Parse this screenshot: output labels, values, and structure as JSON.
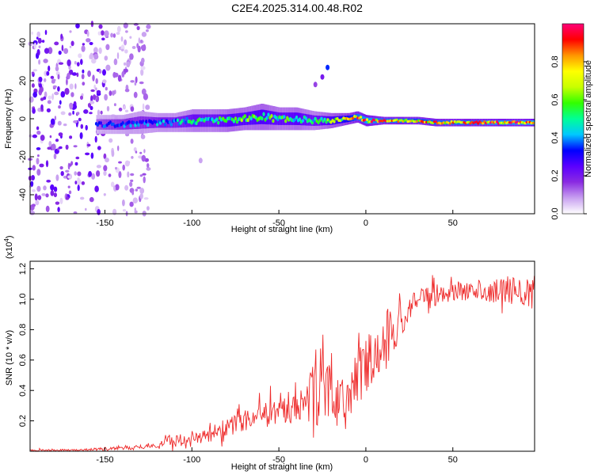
{
  "title": "C2E4.2025.314.00.48.R02",
  "chart_data": [
    {
      "type": "heatmap",
      "name": "spectrogram",
      "xlabel": "Height of straight line (km)",
      "ylabel": "Frequency (Hz)",
      "xlim": [
        -193,
        97
      ],
      "ylim": [
        -50,
        50
      ],
      "xticks": [
        -150,
        -100,
        -50,
        0,
        50
      ],
      "yticks": [
        -40,
        -20,
        0,
        20,
        40
      ],
      "colorbar": {
        "label": "Normalized spectral amplitude",
        "range": [
          0,
          1
        ],
        "ticks": [
          0.0,
          0.2,
          0.4,
          0.6,
          0.8
        ],
        "tick_labels": [
          "0.0",
          "0.2",
          "0.4",
          "0.6",
          "0.8"
        ],
        "colors": [
          "#ffffff",
          "#c8a0f0",
          "#8a2be2",
          "#5a00ff",
          "#0000ff",
          "#00c8ff",
          "#00ff96",
          "#32ff00",
          "#c8ff00",
          "#ffff00",
          "#ff9600",
          "#ff0000",
          "#ff0078"
        ]
      },
      "noise_region": {
        "x_from": -193,
        "x_to": -125,
        "amplitude": 0.15
      },
      "signal_ridge": {
        "x": [
          -155,
          -150,
          -140,
          -130,
          -120,
          -110,
          -100,
          -90,
          -80,
          -70,
          -60,
          -50,
          -40,
          -30,
          -20,
          -10,
          -5,
          0,
          10,
          20,
          30,
          40,
          50,
          60,
          70,
          80,
          90,
          97
        ],
        "freq": [
          -3,
          -3,
          -3,
          -2,
          -2,
          -2,
          -1,
          -1,
          -1,
          0,
          1,
          0,
          0,
          -1,
          -1,
          0,
          1,
          -1,
          -1,
          -1,
          -1,
          -2,
          -2,
          -2,
          -2,
          -2,
          -2,
          -2
        ],
        "halfwidth": [
          5,
          5,
          5,
          6,
          5,
          5,
          6,
          6,
          6,
          6,
          7,
          6,
          6,
          5,
          4,
          3,
          3,
          3,
          2,
          2,
          2,
          2,
          2,
          2,
          2,
          2,
          2,
          2
        ],
        "amplitude": [
          0.3,
          0.35,
          0.38,
          0.4,
          0.42,
          0.45,
          0.5,
          0.5,
          0.55,
          0.58,
          0.58,
          0.55,
          0.55,
          0.5,
          0.6,
          0.75,
          0.85,
          0.9,
          0.85,
          0.85,
          0.8,
          0.85,
          0.85,
          0.85,
          0.9,
          0.9,
          0.9,
          0.95
        ]
      },
      "features": [
        {
          "x": -22,
          "freq": 27,
          "amplitude": 0.35
        },
        {
          "x": -25,
          "freq": 22,
          "amplitude": 0.2
        },
        {
          "x": -29,
          "freq": 18,
          "amplitude": 0.15
        },
        {
          "x": -95,
          "freq": -22,
          "amplitude": 0.08
        }
      ]
    },
    {
      "type": "line",
      "name": "snr",
      "xlabel": "Height of straight line (km)",
      "ylabel": "SNR (10 * v/v)",
      "scale_label_prefix": "(x10",
      "scale_label_exp": "4",
      "scale_label_suffix": ")",
      "xlim": [
        -193,
        97
      ],
      "ylim": [
        0,
        1.25
      ],
      "xticks": [
        -150,
        -100,
        -50,
        0,
        50
      ],
      "yticks": [
        0.2,
        0.4,
        0.6,
        0.8,
        1.0,
        1.2
      ],
      "ytick_labels": [
        "0.2",
        "0.4",
        "0.6",
        "0.8",
        "1.0",
        "1.2"
      ],
      "color": "#ee2b2b",
      "envelope": {
        "x": [
          -193,
          -160,
          -150,
          -140,
          -125,
          -116,
          -115,
          -100,
          -90,
          -80,
          -70,
          -60,
          -50,
          -40,
          -35,
          -32,
          -25,
          -20,
          -15,
          -10,
          -5,
          0,
          5,
          10,
          15,
          20,
          25,
          30,
          40,
          50,
          60,
          70,
          80,
          90,
          97
        ],
        "base": [
          0.005,
          0.01,
          0.015,
          0.02,
          0.03,
          0.04,
          0.07,
          0.08,
          0.11,
          0.16,
          0.2,
          0.23,
          0.26,
          0.28,
          0.3,
          0.32,
          0.36,
          0.38,
          0.3,
          0.35,
          0.48,
          0.56,
          0.64,
          0.72,
          0.78,
          0.85,
          0.93,
          1.0,
          1.03,
          1.06,
          1.06,
          1.06,
          1.06,
          1.05,
          1.06
        ],
        "spread": [
          0.01,
          0.01,
          0.02,
          0.02,
          0.03,
          0.03,
          0.08,
          0.06,
          0.08,
          0.12,
          0.12,
          0.13,
          0.14,
          0.16,
          0.2,
          0.4,
          0.35,
          0.33,
          0.25,
          0.3,
          0.3,
          0.3,
          0.35,
          0.35,
          0.3,
          0.25,
          0.15,
          0.12,
          0.12,
          0.12,
          0.13,
          0.13,
          0.14,
          0.16,
          0.18
        ]
      }
    }
  ]
}
